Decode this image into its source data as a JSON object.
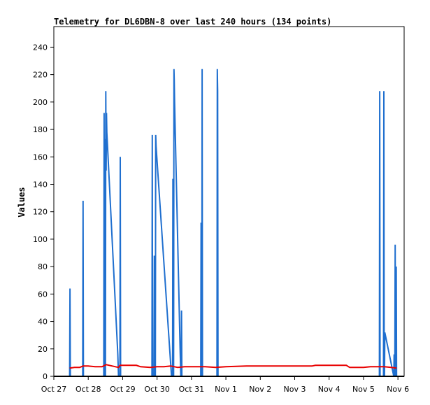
{
  "chart_data": {
    "type": "line",
    "title": "Telemetry for DL6DBN-8 over last 240 hours (134 points)",
    "xlabel": "",
    "ylabel": "Values",
    "ylim": [
      0,
      255
    ],
    "xlim": [
      0,
      10.18
    ],
    "x_ticks": [
      {
        "label": "Oct 27",
        "value": 0
      },
      {
        "label": "Oct 28",
        "value": 1
      },
      {
        "label": "Oct 29",
        "value": 2
      },
      {
        "label": "Oct 30",
        "value": 3
      },
      {
        "label": "Oct 31",
        "value": 4
      },
      {
        "label": "Nov 1",
        "value": 5
      },
      {
        "label": "Nov 2",
        "value": 6
      },
      {
        "label": "Nov 3",
        "value": 7
      },
      {
        "label": "Nov 4",
        "value": 8
      },
      {
        "label": "Nov 5",
        "value": 9
      },
      {
        "label": "Nov 6",
        "value": 10
      }
    ],
    "y_ticks": [
      0,
      20,
      40,
      60,
      80,
      100,
      120,
      140,
      160,
      180,
      200,
      220,
      240
    ],
    "grid": false,
    "colors": {
      "series_blue": "#1f6fcf",
      "series_red": "#e80000"
    },
    "series": [
      {
        "color": "#1f6fcf",
        "points": [
          [
            0.46,
            0
          ],
          [
            0.47,
            64
          ],
          [
            0.48,
            0
          ],
          [
            0.84,
            0
          ],
          [
            0.85,
            128
          ],
          [
            0.86,
            0
          ],
          [
            1.45,
            0
          ],
          [
            1.46,
            192
          ],
          [
            1.47,
            100
          ],
          [
            1.48,
            173
          ],
          [
            1.49,
            0
          ],
          [
            1.5,
            0
          ],
          [
            1.51,
            208
          ],
          [
            1.52,
            150
          ],
          [
            1.53,
            192
          ],
          [
            1.54,
            178
          ],
          [
            1.86,
            16
          ],
          [
            1.88,
            0
          ],
          [
            1.92,
            0
          ],
          [
            1.93,
            160
          ],
          [
            1.94,
            0
          ],
          [
            2.85,
            0
          ],
          [
            2.86,
            176
          ],
          [
            2.87,
            0
          ],
          [
            2.91,
            0
          ],
          [
            2.92,
            88
          ],
          [
            2.93,
            0
          ],
          [
            2.95,
            0
          ],
          [
            2.96,
            176
          ],
          [
            2.97,
            168
          ],
          [
            3.42,
            0
          ],
          [
            3.45,
            0
          ],
          [
            3.46,
            144
          ],
          [
            3.47,
            0
          ],
          [
            3.48,
            0
          ],
          [
            3.49,
            224
          ],
          [
            3.5,
            216
          ],
          [
            3.51,
            200
          ],
          [
            3.67,
            20
          ],
          [
            3.69,
            0
          ],
          [
            3.7,
            0
          ],
          [
            3.71,
            48
          ],
          [
            3.72,
            0
          ],
          [
            4.27,
            0
          ],
          [
            4.28,
            112
          ],
          [
            4.29,
            0
          ],
          [
            4.3,
            0
          ],
          [
            4.31,
            224
          ],
          [
            4.32,
            0
          ],
          [
            4.74,
            0
          ],
          [
            4.75,
            224
          ],
          [
            4.76,
            208
          ],
          [
            4.77,
            0
          ],
          [
            9.46,
            0
          ],
          [
            9.47,
            208
          ],
          [
            9.48,
            0
          ],
          [
            9.58,
            0
          ],
          [
            9.59,
            208
          ],
          [
            9.6,
            0
          ],
          [
            9.61,
            0
          ],
          [
            9.62,
            32
          ],
          [
            9.88,
            0
          ],
          [
            9.89,
            16
          ],
          [
            9.9,
            0
          ],
          [
            9.91,
            0
          ],
          [
            9.92,
            96
          ],
          [
            9.93,
            0
          ],
          [
            9.94,
            0
          ],
          [
            9.95,
            80
          ],
          [
            9.96,
            0
          ]
        ]
      },
      {
        "color": "#e80000",
        "points": [
          [
            0.46,
            6
          ],
          [
            0.6,
            6.5
          ],
          [
            0.75,
            6.5
          ],
          [
            0.85,
            7.5
          ],
          [
            1.0,
            7.5
          ],
          [
            1.2,
            7
          ],
          [
            1.4,
            7
          ],
          [
            1.52,
            8.5
          ],
          [
            1.7,
            7.5
          ],
          [
            1.88,
            6.5
          ],
          [
            1.92,
            8
          ],
          [
            2.1,
            8
          ],
          [
            2.4,
            8
          ],
          [
            2.52,
            7
          ],
          [
            2.8,
            6.5
          ],
          [
            3.0,
            7
          ],
          [
            3.2,
            7
          ],
          [
            3.4,
            7.5
          ],
          [
            3.6,
            6.5
          ],
          [
            3.8,
            7
          ],
          [
            4.0,
            7
          ],
          [
            4.4,
            7
          ],
          [
            4.7,
            6.5
          ],
          [
            5.0,
            7
          ],
          [
            5.6,
            7.5
          ],
          [
            6.5,
            7.5
          ],
          [
            7.5,
            7.5
          ],
          [
            7.6,
            8
          ],
          [
            8.5,
            8
          ],
          [
            8.6,
            6.5
          ],
          [
            9.0,
            6.5
          ],
          [
            9.2,
            7
          ],
          [
            9.6,
            7
          ],
          [
            9.8,
            6.5
          ],
          [
            9.96,
            6
          ]
        ]
      }
    ]
  }
}
